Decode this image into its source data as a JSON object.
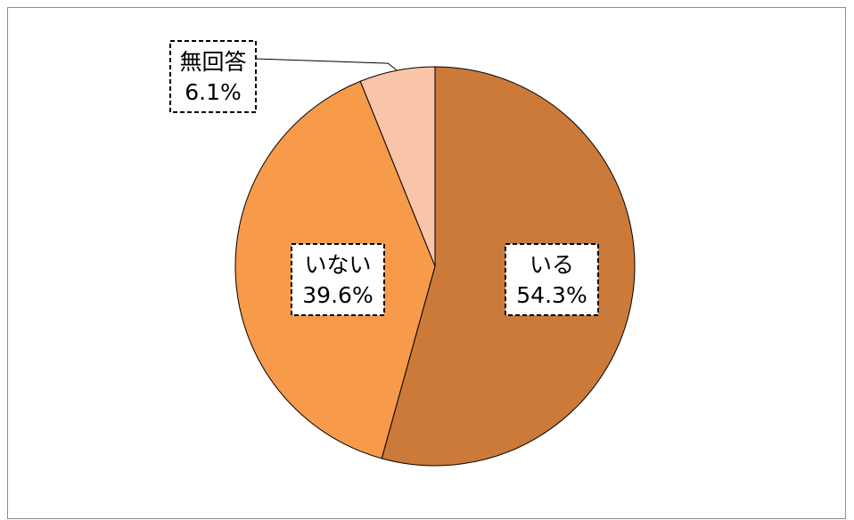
{
  "chart_data": {
    "type": "pie",
    "slices": [
      {
        "label": "いる",
        "value": 54.3,
        "value_label": "54.3%",
        "color": "#cc7a3a"
      },
      {
        "label": "いない",
        "value": 39.6,
        "value_label": "39.6%",
        "color": "#f79a4a"
      },
      {
        "label": "無回答",
        "value": 6.1,
        "value_label": "6.1%",
        "color": "#f9c4a8"
      }
    ],
    "start": "12 o'clock",
    "direction": "clockwise",
    "label_style": "dashed boxes"
  }
}
